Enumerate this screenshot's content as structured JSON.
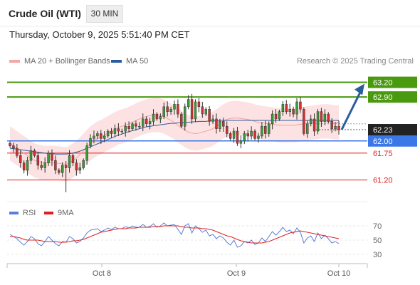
{
  "header": {
    "title": "Crude Oil (WTI)",
    "timeframe": "30 MIN",
    "datetime": "Thursday, October 9, 2025 5:51:40 PM CET",
    "credit": "Research © 2025 Trading Central"
  },
  "legend": {
    "items": [
      {
        "label": "MA 20 + Bollinger Bands",
        "color": "#f4a7a7"
      },
      {
        "label": "MA 50",
        "color": "#2a5d9f"
      }
    ]
  },
  "rsi_legend": {
    "items": [
      {
        "label": "RSI",
        "color": "#5b7fd6"
      },
      {
        "label": "9MA",
        "color": "#e02020"
      }
    ]
  },
  "chart_data": [
    {
      "type": "candlestick",
      "title": "",
      "x_tick_labels": [
        "Oct 8",
        "Oct 9",
        "Oct 10"
      ],
      "ylim": [
        60.8,
        63.5
      ],
      "grid": false,
      "current_price": 62.23,
      "levels": [
        {
          "value": 63.2,
          "label": "63.20",
          "style": "resistance",
          "color": "#4a9a10"
        },
        {
          "value": 62.9,
          "label": "62.90",
          "style": "resistance",
          "color": "#4a9a10"
        },
        {
          "value": 62.0,
          "label": "62.00",
          "style": "pivot",
          "color": "#3b78e7"
        },
        {
          "value": 61.75,
          "label": "61.75",
          "style": "support",
          "color": "#e02020"
        },
        {
          "value": 61.2,
          "label": "61.20",
          "style": "support",
          "color": "#e02020"
        }
      ],
      "current_label": "62.23",
      "arrow": {
        "from": 62.23,
        "to": 63.2,
        "color": "#2a5d9f"
      },
      "closes": [
        61.9,
        61.85,
        61.7,
        61.55,
        61.4,
        61.6,
        61.8,
        61.7,
        61.5,
        61.45,
        61.55,
        61.75,
        61.6,
        61.4,
        61.35,
        61.5,
        61.45,
        61.7,
        61.55,
        61.4,
        61.45,
        61.6,
        61.9,
        62.05,
        62.1,
        62.15,
        62.05,
        62.1,
        62.2,
        62.15,
        62.25,
        62.2,
        62.2,
        62.3,
        62.25,
        62.35,
        62.3,
        62.3,
        62.45,
        62.35,
        62.4,
        62.55,
        62.45,
        62.5,
        62.7,
        62.6,
        62.65,
        62.75,
        62.55,
        62.3,
        62.7,
        62.85,
        62.45,
        62.8,
        62.7,
        62.55,
        62.65,
        62.4,
        62.45,
        62.25,
        62.4,
        62.3,
        62.15,
        62.05,
        62.2,
        61.95,
        62.0,
        62.15,
        62.1,
        62.2,
        62.05,
        62.1,
        62.3,
        62.15,
        62.35,
        62.55,
        62.45,
        62.6,
        62.75,
        62.6,
        62.65,
        62.55,
        62.8,
        62.65,
        62.15,
        62.35,
        62.45,
        62.2,
        62.6,
        62.4,
        62.55,
        62.4,
        62.25,
        62.3,
        62.23
      ],
      "ma20": [
        61.95,
        61.9,
        61.85,
        61.8,
        61.75,
        61.7,
        61.65,
        61.6,
        61.58,
        61.56,
        61.55,
        61.55,
        61.55,
        61.55,
        61.54,
        61.53,
        61.52,
        61.55,
        61.6,
        61.65,
        61.72,
        61.8,
        61.88,
        61.95,
        62.0,
        62.05,
        62.08,
        62.12,
        62.16,
        62.2,
        62.24,
        62.28,
        62.3,
        62.32,
        62.35,
        62.38,
        62.42,
        62.45,
        62.48,
        62.5,
        62.52,
        62.53,
        62.53,
        62.52,
        62.5,
        62.46,
        62.42,
        62.38,
        62.32,
        62.27,
        62.22,
        62.18,
        62.16,
        62.15,
        62.16,
        62.18,
        62.2,
        62.22,
        62.25,
        62.3,
        62.35,
        62.4,
        62.44,
        62.46,
        62.47,
        62.47,
        62.46,
        62.45,
        62.44,
        62.42,
        62.4,
        62.38,
        62.37,
        62.36,
        62.35,
        62.34,
        62.33,
        62.32,
        62.32,
        62.32,
        62.32,
        62.32,
        62.33,
        62.34,
        62.35,
        62.36,
        62.37,
        62.38,
        62.39,
        62.4,
        62.4,
        62.4,
        62.39,
        62.38,
        62.38
      ],
      "bb_width": 0.35,
      "ma50": [
        61.85,
        61.84,
        61.83,
        61.82,
        61.81,
        61.8,
        61.79,
        61.78,
        61.77,
        61.76,
        61.75,
        61.74,
        61.74,
        61.73,
        61.73,
        61.73,
        61.73,
        61.74,
        61.75,
        61.77,
        61.79,
        61.82,
        61.85,
        61.88,
        61.91,
        61.94,
        61.97,
        62.0,
        62.03,
        62.06,
        62.09,
        62.12,
        62.14,
        62.17,
        62.19,
        62.21,
        62.23,
        62.25,
        62.27,
        62.29,
        62.3,
        62.31,
        62.32,
        62.33,
        62.34,
        62.35,
        62.36,
        62.36,
        62.37,
        62.37,
        62.38,
        62.38,
        62.39,
        62.39,
        62.4,
        62.4,
        62.4,
        62.41,
        62.41,
        62.41,
        62.42,
        62.42,
        62.42,
        62.42,
        62.42,
        62.42,
        62.42,
        62.42,
        62.42,
        62.42,
        62.42,
        62.42,
        62.42,
        62.42,
        62.42,
        62.42,
        62.42,
        62.42,
        62.42,
        62.42,
        62.42,
        62.42,
        62.42,
        62.42,
        62.42,
        62.42,
        62.42,
        62.42,
        62.42,
        62.42,
        62.42,
        62.42,
        62.42,
        62.42,
        62.42
      ]
    },
    {
      "type": "line",
      "title": "",
      "ylim": [
        25,
        75
      ],
      "y_tick_labels": [
        "70",
        "50",
        "30"
      ],
      "rsi": [
        58,
        55,
        52,
        47,
        43,
        48,
        55,
        52,
        45,
        42,
        48,
        55,
        50,
        45,
        42,
        48,
        47,
        55,
        52,
        46,
        48,
        53,
        60,
        64,
        65,
        66,
        62,
        64,
        67,
        65,
        68,
        66,
        66,
        69,
        67,
        70,
        68,
        68,
        72,
        68,
        69,
        73,
        68,
        70,
        74,
        70,
        71,
        72,
        65,
        58,
        70,
        73,
        60,
        70,
        66,
        61,
        64,
        56,
        58,
        52,
        56,
        53,
        47,
        43,
        50,
        40,
        42,
        48,
        46,
        50,
        44,
        46,
        53,
        48,
        55,
        62,
        57,
        62,
        68,
        62,
        64,
        59,
        67,
        61,
        46,
        53,
        56,
        48,
        60,
        52,
        57,
        52,
        46,
        48,
        45
      ],
      "rsi_ma": [
        55,
        55,
        54,
        53,
        51,
        50,
        50,
        50,
        50,
        49,
        48,
        48,
        48,
        48,
        47,
        47,
        47,
        48,
        49,
        49,
        50,
        51,
        53,
        55,
        57,
        59,
        61,
        62,
        63,
        64,
        65,
        66,
        66,
        66,
        67,
        67,
        67,
        68,
        68,
        68,
        68,
        69,
        69,
        69,
        70,
        70,
        70,
        70,
        70,
        69,
        68,
        68,
        67,
        67,
        67,
        66,
        66,
        65,
        64,
        62,
        60,
        58,
        56,
        55,
        53,
        51,
        49,
        48,
        47,
        46,
        46,
        46,
        46,
        47,
        48,
        50,
        52,
        54,
        56,
        58,
        60,
        61,
        62,
        63,
        62,
        61,
        60,
        59,
        58,
        57,
        56,
        55,
        54,
        53,
        52
      ]
    }
  ]
}
